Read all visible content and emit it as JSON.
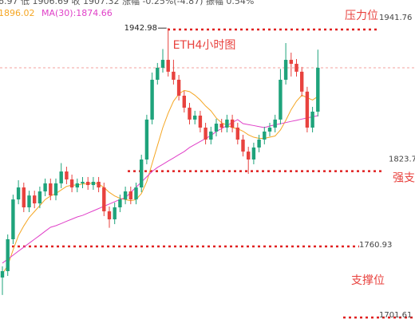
{
  "chart_data": {
    "type": "candlestick",
    "title": "ETH4小时图",
    "header": "6.97 低 1906.69 收 1907.32 涨幅 -0.25%(-4.87) 振幅 0.54%",
    "ma_labels": [
      "1896.02",
      "MA(30):1874.66"
    ],
    "ylim": [
      1700.4,
      1966.4
    ],
    "up_color": "#1ea37b",
    "down_color": "#e8423e",
    "open": [
      1735.0,
      1740.3,
      1766.9,
      1800.1,
      1810.1,
      1793.5,
      1803.4,
      1796.8,
      1806.8,
      1813.5,
      1803.4,
      1813.5,
      1823.4,
      1816.8,
      1810.1,
      1813.5,
      1814.8,
      1812.1,
      1814.8,
      1810.1,
      1790.2,
      1783.5,
      1793.5,
      1800.1,
      1806.8,
      1800.1,
      1810.1,
      1833.4,
      1866.7,
      1899.9,
      1909.9,
      1916.5,
      1906.6,
      1899.9,
      1886.6,
      1876.6,
      1866.7,
      1870.0,
      1860.0,
      1850.0,
      1856.7,
      1863.3,
      1860.0,
      1866.7,
      1860.0,
      1850.0,
      1840.0,
      1833.4,
      1843.4,
      1850.0,
      1856.7,
      1860.0,
      1866.7,
      1899.9,
      1916.5,
      1913.2,
      1906.6,
      1890.0,
      1860.0,
      1873.3
    ],
    "high": [
      1744.3,
      1770.9,
      1804.1,
      1816.1,
      1814.1,
      1807.4,
      1807.4,
      1810.8,
      1817.5,
      1817.5,
      1817.5,
      1830.4,
      1827.4,
      1820.8,
      1817.5,
      1818.8,
      1818.8,
      1818.8,
      1818.8,
      1814.1,
      1794.2,
      1797.5,
      1804.1,
      1810.8,
      1810.8,
      1814.1,
      1837.4,
      1870.7,
      1905.9,
      1913.9,
      1925.5,
      1942.98,
      1916.6,
      1903.9,
      1890.6,
      1880.6,
      1874.0,
      1874.0,
      1864.0,
      1860.7,
      1867.3,
      1867.3,
      1870.7,
      1870.7,
      1864.0,
      1854.0,
      1844.0,
      1847.4,
      1854.0,
      1860.7,
      1864.0,
      1870.7,
      1908.9,
      1930.5,
      1922.5,
      1917.2,
      1910.6,
      1894.0,
      1877.3,
      1925.0
    ],
    "low": [
      1720.4,
      1736.3,
      1762.9,
      1796.1,
      1789.5,
      1789.5,
      1792.8,
      1792.8,
      1802.8,
      1799.4,
      1799.4,
      1809.5,
      1812.8,
      1806.1,
      1806.1,
      1809.5,
      1808.1,
      1808.1,
      1806.1,
      1786.2,
      1776.5,
      1779.5,
      1789.5,
      1796.1,
      1796.1,
      1796.1,
      1806.1,
      1829.4,
      1862.7,
      1895.9,
      1905.9,
      1902.6,
      1895.9,
      1882.6,
      1872.6,
      1862.7,
      1862.7,
      1856.0,
      1846.0,
      1846.0,
      1852.7,
      1856.0,
      1856.0,
      1856.0,
      1846.0,
      1836.0,
      1821.4,
      1829.4,
      1839.4,
      1846.0,
      1852.7,
      1856.0,
      1862.7,
      1895.9,
      1902.6,
      1902.6,
      1886.0,
      1856.0,
      1856.0,
      1869.3
    ],
    "close": [
      1740.3,
      1766.9,
      1800.1,
      1810.1,
      1793.5,
      1803.4,
      1796.8,
      1806.8,
      1813.5,
      1803.4,
      1813.5,
      1823.4,
      1816.8,
      1810.1,
      1813.5,
      1814.8,
      1812.1,
      1814.8,
      1810.1,
      1790.2,
      1783.5,
      1793.5,
      1800.1,
      1806.8,
      1800.1,
      1810.1,
      1833.4,
      1866.7,
      1899.9,
      1909.9,
      1916.5,
      1906.6,
      1899.9,
      1886.6,
      1876.6,
      1866.7,
      1870.0,
      1860.0,
      1850.0,
      1856.7,
      1863.3,
      1860.0,
      1866.7,
      1860.0,
      1850.0,
      1840.0,
      1833.4,
      1843.4,
      1850.0,
      1856.7,
      1860.0,
      1866.7,
      1899.9,
      1916.5,
      1913.2,
      1906.6,
      1890.0,
      1860.0,
      1873.3,
      1909.9
    ],
    "series": [
      {
        "color": "#f5a623",
        "values": [
          1738,
          1745,
          1758,
          1770,
          1778,
          1785,
          1790,
          1795,
          1800,
          1803,
          1805,
          1808,
          1811,
          1812,
          1812,
          1813,
          1813,
          1814,
          1813,
          1810,
          1806,
          1803,
          1801,
          1800,
          1799,
          1800,
          1805,
          1815,
          1830,
          1845,
          1860,
          1872,
          1882,
          1888,
          1891,
          1890,
          1887,
          1883,
          1878,
          1874,
          1868,
          1864,
          1862,
          1860,
          1859,
          1857,
          1854,
          1852,
          1851,
          1851,
          1852,
          1853,
          1858,
          1866,
          1875,
          1882,
          1887,
          1885,
          1883,
          1886
        ]
      },
      {
        "color": "#e040c8",
        "values": [
          1747.0,
          1750.3,
          1753.6,
          1757.0,
          1760.3,
          1763.6,
          1766.9,
          1770.2,
          1773.6,
          1776.9,
          1778.2,
          1780.0,
          1781.9,
          1783.7,
          1785.5,
          1786.8,
          1788.7,
          1790.6,
          1792.5,
          1794.4,
          1796.3,
          1798.2,
          1800.1,
          1801.5,
          1805.9,
          1810.3,
          1814.6,
          1819.0,
          1823.4,
          1826.8,
          1829.4,
          1832.1,
          1834.7,
          1837.4,
          1840.0,
          1843.4,
          1845.9,
          1848.4,
          1850.9,
          1853.4,
          1856.7,
          1859.2,
          1861.7,
          1864.2,
          1866.7,
          1863.3,
          1862.5,
          1861.7,
          1860.8,
          1860.0,
          1861.3,
          1862.3,
          1863.2,
          1864.2,
          1865.2,
          1866.1,
          1867.1,
          1868.1,
          1869.0,
          1870.0
        ]
      }
    ],
    "high_marker": {
      "value": 1942.98,
      "label": "1942.98"
    },
    "levels": [
      {
        "price": 1941.76,
        "label": "1941.76",
        "name": "压力位"
      },
      {
        "price": 1823.7,
        "label": "1823.7",
        "name": "强支"
      },
      {
        "price": 1760.93,
        "label": "1760.93",
        "name": "支撑位"
      },
      {
        "price": 1701.61,
        "label": "1701.61"
      }
    ]
  }
}
